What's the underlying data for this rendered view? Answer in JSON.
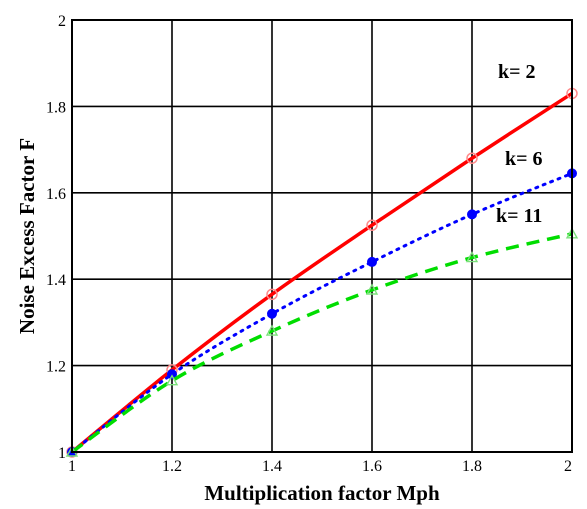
{
  "chart_data": {
    "type": "line",
    "title": "",
    "xlabel": "Multiplication factor Mph",
    "ylabel": "Noise Excess Factor F",
    "xlim": [
      1,
      2
    ],
    "ylim": [
      1,
      2
    ],
    "grid": true,
    "x_ticks": [
      "1",
      "1.2",
      "1.4",
      "1.6",
      "1.8",
      "2"
    ],
    "y_ticks": [
      "1",
      "1.2",
      "1.4",
      "1.6",
      "1.8",
      "2"
    ],
    "series": [
      {
        "name": "k= 2",
        "color": "#ff0000",
        "line_style": "solid",
        "marker": "open-circle",
        "x": [
          1,
          1.2,
          1.4,
          1.6,
          1.8,
          2
        ],
        "y": [
          1.0,
          1.19,
          1.365,
          1.525,
          1.68,
          1.83
        ]
      },
      {
        "name": "k= 6",
        "color": "#0000ff",
        "line_style": "dotted",
        "marker": "filled-circle",
        "x": [
          1,
          1.2,
          1.4,
          1.6,
          1.8,
          2
        ],
        "y": [
          1.0,
          1.18,
          1.32,
          1.44,
          1.55,
          1.645
        ]
      },
      {
        "name": "k= 11",
        "color": "#00dd00",
        "line_style": "dashed",
        "marker": "open-triangle",
        "x": [
          1,
          1.2,
          1.4,
          1.6,
          1.8,
          2
        ],
        "y": [
          1.0,
          1.165,
          1.28,
          1.375,
          1.45,
          1.505
        ]
      }
    ]
  }
}
